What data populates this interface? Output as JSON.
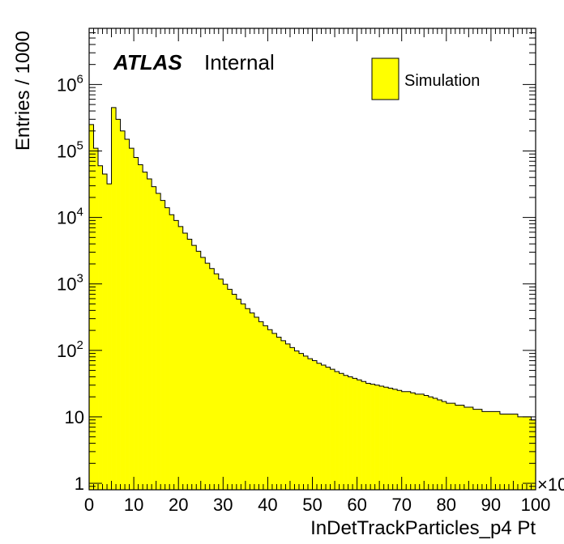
{
  "chart_data": {
    "type": "bar",
    "histogram_style": "step-filled",
    "fill_color": "#ffff00",
    "line_color": "#000000",
    "xlabel": "InDetTrackParticles_p4 Pt",
    "ylabel": "Entries / 1000",
    "x_multiplier_label": "×10",
    "log_y": true,
    "xlim": [
      0,
      100
    ],
    "ylim": [
      0.8,
      7000000
    ],
    "bin_width": 1,
    "x_tick_labels": [
      "0",
      "10",
      "20",
      "30",
      "40",
      "50",
      "60",
      "70",
      "80",
      "90",
      "100"
    ],
    "x_tick_values": [
      0,
      10,
      20,
      30,
      40,
      50,
      60,
      70,
      80,
      90,
      100
    ],
    "y_tick_labels": [
      {
        "base": "1",
        "exp": "",
        "value": 1
      },
      {
        "base": "10",
        "exp": "",
        "value": 10
      },
      {
        "base": "10",
        "exp": "2",
        "value": 100
      },
      {
        "base": "10",
        "exp": "3",
        "value": 1000
      },
      {
        "base": "10",
        "exp": "4",
        "value": 10000
      },
      {
        "base": "10",
        "exp": "5",
        "value": 100000
      },
      {
        "base": "10",
        "exp": "6",
        "value": 1000000
      }
    ],
    "legend": {
      "entries": [
        {
          "label": "Simulation",
          "color": "#ffff00"
        }
      ],
      "position": "top-right"
    },
    "atlas_label": {
      "bold": "ATLAS",
      "text": "Internal"
    },
    "values": [
      250000,
      110000,
      60000,
      45000,
      32000,
      450000,
      300000,
      200000,
      150000,
      110000,
      80000,
      62000,
      48000,
      38000,
      29000,
      23000,
      18000,
      14000,
      11000,
      9000,
      7300,
      5800,
      4700,
      3800,
      3100,
      2500,
      2050,
      1700,
      1420,
      1180,
      990,
      830,
      700,
      590,
      500,
      425,
      365,
      315,
      270,
      235,
      205,
      180,
      158,
      140,
      125,
      110,
      98,
      90,
      82,
      75,
      70,
      64,
      60,
      56,
      52,
      48,
      45,
      42,
      40,
      38,
      36,
      34,
      32,
      31,
      30,
      29,
      28,
      27,
      26,
      25,
      24,
      24,
      23,
      22,
      22,
      21,
      20,
      19,
      18,
      17,
      16,
      16,
      15,
      15,
      14,
      14,
      13,
      13,
      12,
      12,
      12,
      12,
      11,
      11,
      11,
      11,
      10,
      10,
      10,
      9
    ]
  }
}
